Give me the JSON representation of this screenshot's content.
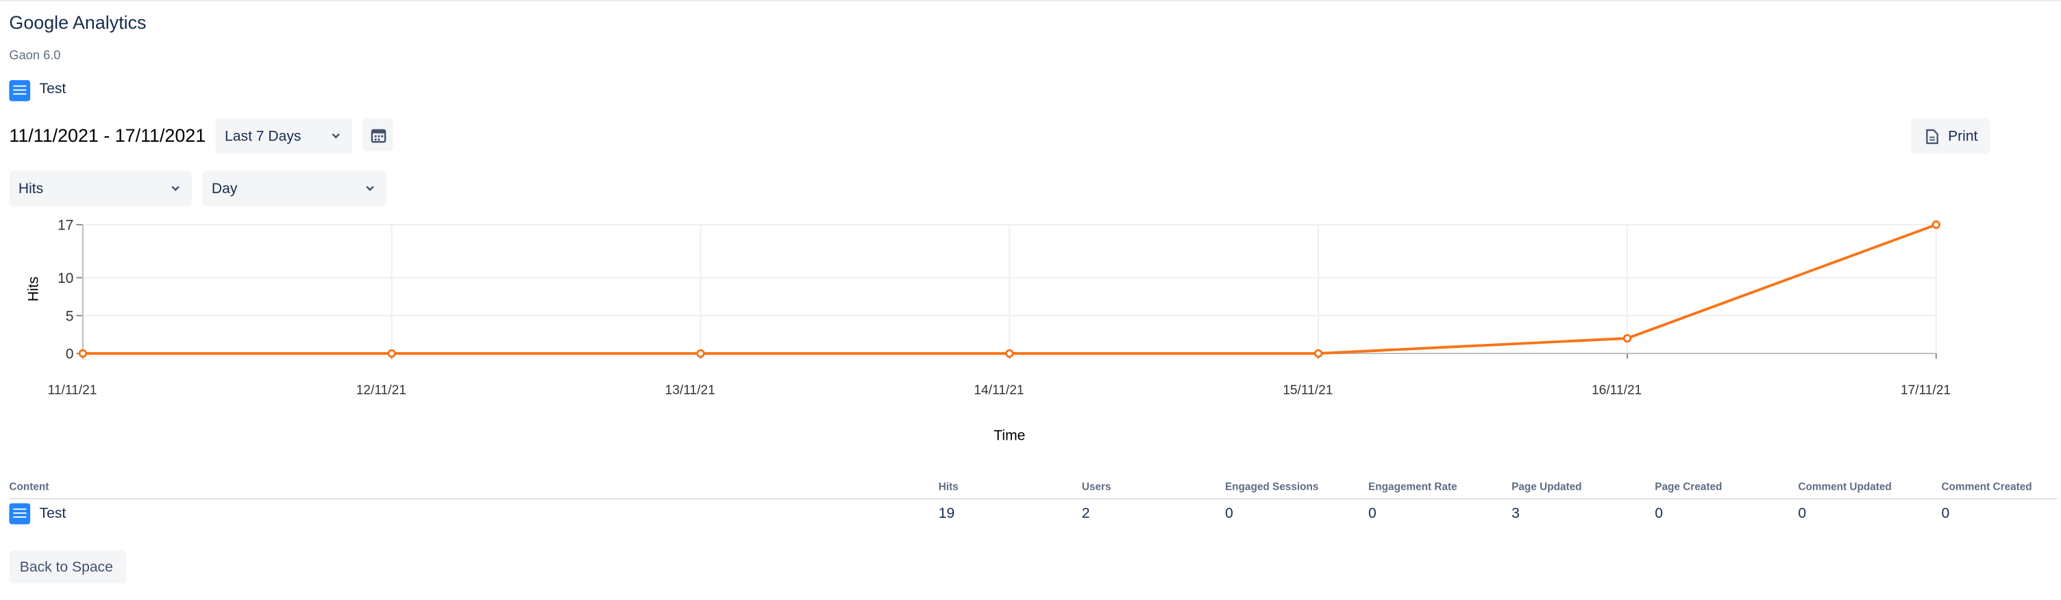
{
  "header": {
    "title": "Google Analytics",
    "subtitle": "Gaon 6.0",
    "page": "Test"
  },
  "controls": {
    "date_range": "11/11/2021 - 17/11/2021",
    "period": "Last 7 Days",
    "print": "Print",
    "metric": "Hits",
    "granularity": "Day"
  },
  "chart_data": {
    "type": "line",
    "x_label": "Time",
    "y_label": "Hits",
    "categories": [
      "11/11/21",
      "12/11/21",
      "13/11/21",
      "14/11/21",
      "15/11/21",
      "16/11/21",
      "17/11/21"
    ],
    "series": [
      {
        "name": "Hits",
        "color": "#f97316",
        "values": [
          0,
          0,
          0,
          0,
          0,
          2,
          17
        ]
      }
    ],
    "ylim": [
      0,
      17
    ],
    "yticks": [
      0,
      5,
      10,
      17
    ],
    "grid": true
  },
  "table": {
    "columns": [
      "Content",
      "Hits",
      "Users",
      "Engaged Sessions",
      "Engagement Rate",
      "Page Updated",
      "Page Created",
      "Comment Updated",
      "Comment Created"
    ],
    "rows": [
      [
        "Test",
        19,
        2,
        0,
        0,
        3,
        0,
        0,
        0
      ]
    ]
  },
  "footer": {
    "back": "Back to Space"
  }
}
